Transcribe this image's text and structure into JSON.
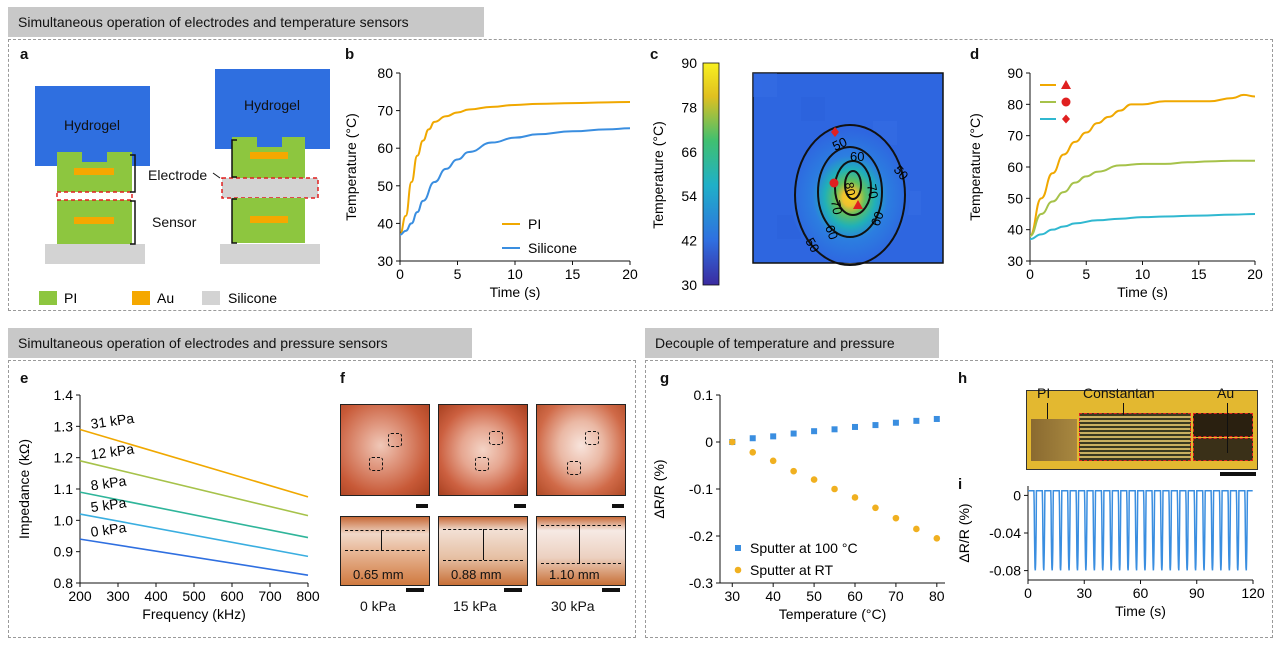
{
  "headers": {
    "top": "Simultaneous operation of electrodes and temperature sensors",
    "pressure": "Simultaneous operation of electrodes and pressure sensors",
    "decouple": "Decouple of temperature and pressure"
  },
  "panel_labels": {
    "a": "a",
    "b": "b",
    "c": "c",
    "d": "d",
    "e": "e",
    "f": "f",
    "g": "g",
    "h": "h",
    "i": "i"
  },
  "panel_a": {
    "hydrogel_left": "Hydrogel",
    "hydrogel_right": "Hydrogel",
    "electrode": "Electrode",
    "sensor": "Sensor",
    "legend": [
      {
        "label": "PI",
        "color": "#8dc63f"
      },
      {
        "label": "Au",
        "color": "#f5a800"
      },
      {
        "label": "Silicone",
        "color": "#d3d3d3"
      }
    ],
    "hydrogel_color": "#2f6fe0"
  },
  "panel_f": {
    "cols": [
      "0 kPa",
      "15 kPa",
      "30 kPa"
    ],
    "thickness": [
      "0.65 mm",
      "0.88 mm",
      "1.10 mm"
    ]
  },
  "panel_h": {
    "pi": "PI",
    "constantan": "Constantan",
    "au": "Au"
  },
  "chart_data": [
    {
      "id": "b",
      "type": "line",
      "xlabel": "Time (s)",
      "ylabel": "Temperature (°C)",
      "xlim": [
        0,
        20
      ],
      "ylim": [
        30,
        80
      ],
      "xticks": [
        0,
        5,
        10,
        15,
        20
      ],
      "yticks": [
        30,
        40,
        50,
        60,
        70,
        80
      ],
      "legend_position": "bottom-right",
      "series": [
        {
          "name": "PI",
          "color": "#f0a800",
          "x": [
            0,
            0.5,
            1,
            1.5,
            2,
            2.5,
            3,
            4,
            5,
            6,
            8,
            10,
            12,
            15,
            18,
            20
          ],
          "y": [
            37,
            42,
            51,
            58,
            62,
            65,
            67,
            68.5,
            69.5,
            70.3,
            71,
            71.5,
            71.8,
            72,
            72.2,
            72.3
          ]
        },
        {
          "name": "Silicone",
          "color": "#3a8ee0",
          "x": [
            0,
            0.5,
            1,
            1.5,
            2,
            3,
            4,
            5,
            6,
            8,
            10,
            12,
            15,
            18,
            20
          ],
          "y": [
            37,
            38,
            40,
            43,
            46,
            51,
            54.5,
            57,
            59,
            61.5,
            62.8,
            63.7,
            64.5,
            65,
            65.3
          ]
        }
      ]
    },
    {
      "id": "c",
      "type": "heatmap",
      "colorbar_label": "Temperature (°C)",
      "colorbar_ticks": [
        30,
        42,
        54,
        66,
        78,
        90
      ],
      "contour_labels": [
        "50",
        "60",
        "70",
        "80"
      ]
    },
    {
      "id": "d",
      "type": "line",
      "xlabel": "Time (s)",
      "ylabel": "Temperature (°C)",
      "xlim": [
        0,
        20
      ],
      "ylim": [
        30,
        90
      ],
      "xticks": [
        0,
        5,
        10,
        15,
        20
      ],
      "yticks": [
        30,
        40,
        50,
        60,
        70,
        80,
        90
      ],
      "legend_position": "top-left",
      "series": [
        {
          "name": "▲",
          "color": "#f0a800",
          "x": [
            0,
            1,
            2,
            3,
            4,
            5,
            6,
            7,
            8,
            9,
            10,
            12,
            14,
            16,
            18,
            19,
            20
          ],
          "y": [
            38,
            50,
            58,
            64,
            68,
            71,
            74,
            76,
            78,
            80,
            80,
            81,
            81,
            81,
            82,
            83,
            82.5
          ]
        },
        {
          "name": "●",
          "color": "#a6c24a",
          "x": [
            0,
            1,
            2,
            3,
            4,
            5,
            6,
            8,
            10,
            12,
            14,
            16,
            18,
            20
          ],
          "y": [
            38,
            45,
            49,
            52,
            55,
            57,
            58.5,
            60.5,
            61,
            61,
            61.5,
            61.8,
            62,
            62
          ]
        },
        {
          "name": "◆",
          "color": "#30b8d0",
          "x": [
            0,
            1,
            2,
            3,
            4,
            6,
            8,
            10,
            12,
            15,
            18,
            20
          ],
          "y": [
            37,
            38.5,
            40,
            41,
            42,
            43,
            43.5,
            44,
            44.2,
            44.5,
            44.8,
            45
          ]
        }
      ]
    },
    {
      "id": "e",
      "type": "line",
      "xlabel": "Frequency (kHz)",
      "ylabel": "Impedance (kΩ)",
      "xlim": [
        200,
        800
      ],
      "ylim": [
        0.8,
        1.4
      ],
      "xticks": [
        200,
        300,
        400,
        500,
        600,
        700,
        800
      ],
      "yticks": [
        0.8,
        0.9,
        1.0,
        1.1,
        1.2,
        1.3,
        1.4
      ],
      "series": [
        {
          "name": "31 kPa",
          "color": "#f0a800",
          "x": [
            200,
            800
          ],
          "y": [
            1.29,
            1.075
          ]
        },
        {
          "name": "12 kPa",
          "color": "#a6c24a",
          "x": [
            200,
            800
          ],
          "y": [
            1.19,
            1.015
          ]
        },
        {
          "name": "8 kPa",
          "color": "#2fb59a",
          "x": [
            200,
            800
          ],
          "y": [
            1.09,
            0.945
          ]
        },
        {
          "name": "5 kPa",
          "color": "#3aaee0",
          "x": [
            200,
            800
          ],
          "y": [
            1.02,
            0.885
          ]
        },
        {
          "name": "0 kPa",
          "color": "#2f6fe0",
          "x": [
            200,
            800
          ],
          "y": [
            0.94,
            0.825
          ]
        }
      ]
    },
    {
      "id": "g",
      "type": "scatter",
      "xlabel": "Temperature (°C)",
      "ylabel": "ΔR/R (%)",
      "xlim": [
        27,
        82
      ],
      "ylim": [
        -0.3,
        0.1
      ],
      "xticks": [
        30,
        40,
        50,
        60,
        70,
        80
      ],
      "yticks": [
        -0.3,
        -0.2,
        -0.1,
        0,
        0.1
      ],
      "legend_position": "bottom-left",
      "series": [
        {
          "name": "Sputter at 100 °C",
          "color": "#3a8ee0",
          "marker": "square",
          "x": [
            30,
            35,
            40,
            45,
            50,
            55,
            60,
            65,
            70,
            75,
            80
          ],
          "y": [
            0,
            0.008,
            0.012,
            0.018,
            0.023,
            0.027,
            0.032,
            0.036,
            0.041,
            0.045,
            0.049
          ]
        },
        {
          "name": "Sputter at RT",
          "color": "#f0b020",
          "marker": "circle",
          "x": [
            30,
            35,
            40,
            45,
            50,
            55,
            60,
            65,
            70,
            75,
            80
          ],
          "y": [
            0,
            -0.022,
            -0.04,
            -0.062,
            -0.08,
            -0.1,
            -0.118,
            -0.14,
            -0.162,
            -0.185,
            -0.205
          ]
        }
      ]
    },
    {
      "id": "i",
      "type": "line",
      "xlabel": "Time (s)",
      "ylabel": "ΔR/R (%)",
      "xlim": [
        0,
        120
      ],
      "ylim": [
        -0.09,
        0.01
      ],
      "xticks": [
        0,
        30,
        60,
        90,
        120
      ],
      "yticks": [
        -0.08,
        -0.04,
        0
      ],
      "series": [
        {
          "name": "cyclic",
          "color": "#3a8ee0",
          "period_s": 4.5,
          "max": 0.005,
          "min": -0.08
        }
      ]
    }
  ]
}
